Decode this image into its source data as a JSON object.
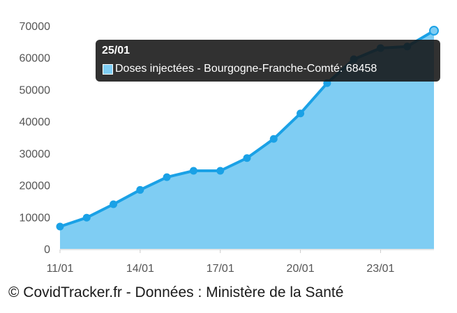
{
  "chart_data": {
    "type": "area",
    "x": [
      "11/01",
      "12/01",
      "13/01",
      "14/01",
      "15/01",
      "16/01",
      "17/01",
      "18/01",
      "19/01",
      "20/01",
      "21/01",
      "22/01",
      "23/01",
      "24/01",
      "25/01"
    ],
    "series": [
      {
        "name": "Doses injectées - Bourgogne-Franche-Comté",
        "values": [
          7000,
          9800,
          14000,
          18500,
          22500,
          24500,
          24500,
          28500,
          34500,
          42500,
          52000,
          59500,
          63000,
          63500,
          68458
        ]
      }
    ],
    "x_tick_labels": [
      "11/01",
      "14/01",
      "17/01",
      "20/01",
      "23/01"
    ],
    "y_ticks": [
      0,
      10000,
      20000,
      30000,
      40000,
      50000,
      60000,
      70000
    ],
    "ylim": [
      0,
      70000
    ],
    "title": "",
    "xlabel": "",
    "ylabel": "",
    "grid": false,
    "colors": {
      "line": "#1aa1e6",
      "fill": "#7fcdf3",
      "marker": "#1aa1e6",
      "axis": "#cccccc",
      "tooltip_swatch": "#7fcdf3"
    },
    "tooltip": {
      "title": "25/01",
      "text": "Doses injectées - Bourgogne-Franche-Comté: 68458",
      "index": 14
    }
  },
  "credit": "© CovidTracker.fr - Données : Ministère de la Santé"
}
